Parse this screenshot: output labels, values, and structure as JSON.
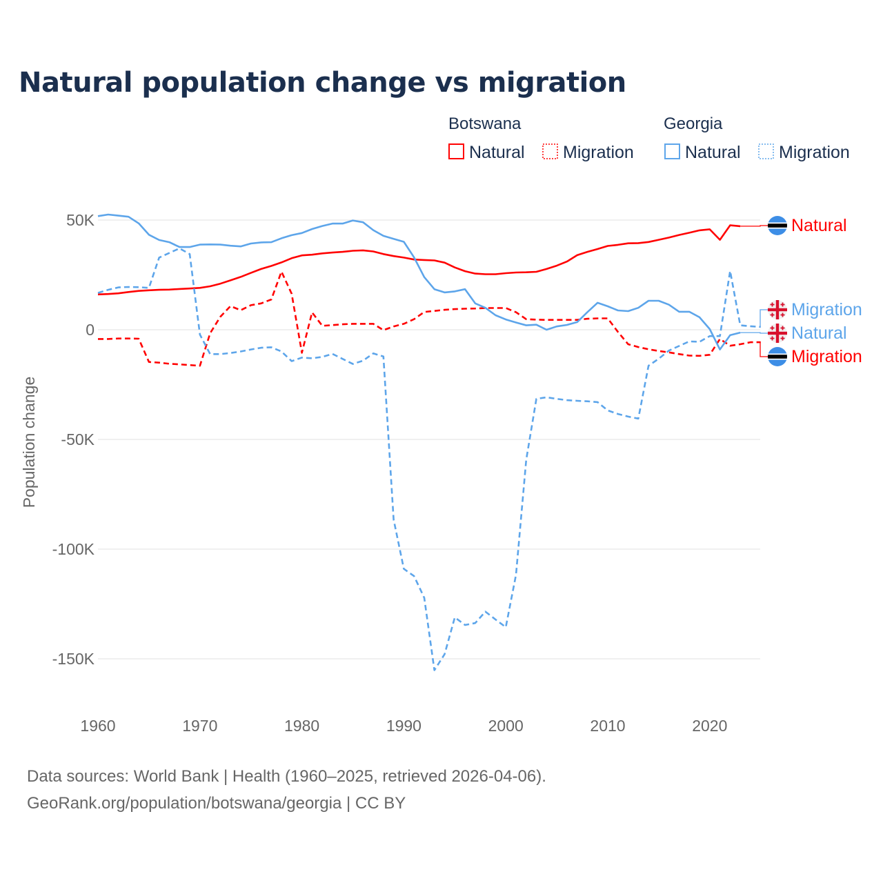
{
  "title": "Natural population change vs migration",
  "legend": {
    "groups": [
      {
        "country": "Botswana",
        "color": "#ff0000",
        "items": [
          "Natural",
          "Migration"
        ]
      },
      {
        "country": "Georgia",
        "color": "#5da5ea",
        "items": [
          "Natural",
          "Migration"
        ]
      }
    ]
  },
  "source": {
    "line1": "Data sources: World Bank | Health (1960–2025, retrieved 2026-04-06).",
    "line2": "GeoRank.org/population/botswana/georgia | CC BY"
  },
  "chart_data": {
    "type": "line",
    "title": "Natural population change vs migration",
    "xlabel": "",
    "ylabel": "Population change",
    "value_scale": 1000,
    "xlim": [
      1960,
      2025
    ],
    "ylim": [
      -165,
      58
    ],
    "x_ticks": [
      1960,
      1970,
      1980,
      1990,
      2000,
      2010,
      2020
    ],
    "x_tick_labels": [
      "1960",
      "1970",
      "1980",
      "1990",
      "2000",
      "2010",
      "2020"
    ],
    "y_ticks": [
      50,
      0,
      -50,
      -100,
      -150
    ],
    "y_tick_labels": [
      "50K",
      "0",
      "-50K",
      "-100K",
      "-150K"
    ],
    "grid": true,
    "legend_position": "top-right",
    "series": [
      {
        "name": "Botswana Natural",
        "end_label": "Natural",
        "flag": "botswana-flag",
        "color": "#ff0000",
        "dash": "solid",
        "start_year": 1960,
        "values": [
          16.1,
          16.3,
          16.6,
          17.2,
          17.7,
          18,
          18.2,
          18.3,
          18.6,
          18.8,
          19.1,
          19.8,
          21,
          22.5,
          24.1,
          25.9,
          27.7,
          29.1,
          30.7,
          32.6,
          33.9,
          34.2,
          34.8,
          35.2,
          35.5,
          36,
          36.2,
          35.7,
          34.5,
          33.6,
          32.9,
          32,
          31.8,
          31.6,
          30.6,
          28.4,
          26.7,
          25.6,
          25.3,
          25.3,
          25.8,
          26.1,
          26.2,
          26.4,
          27.7,
          29.2,
          31.1,
          34,
          35.5,
          36.8,
          38.2,
          38.7,
          39.4,
          39.5,
          40,
          41,
          42,
          43.2,
          44.2,
          45.3,
          45.8,
          41,
          47.6,
          47.2
        ]
      },
      {
        "name": "Botswana Migration",
        "end_label": "Migration",
        "flag": "botswana-flag",
        "color": "#ff0000",
        "dash": "dashed",
        "start_year": 1960,
        "values": [
          -4.2,
          -4.2,
          -4,
          -4,
          -4.1,
          -14.7,
          -15,
          -15.5,
          -15.8,
          -16.1,
          -16.4,
          -1.6,
          5.9,
          10.8,
          8.9,
          11.2,
          12,
          13.8,
          26.5,
          16.4,
          -10.5,
          7.9,
          1.8,
          2.1,
          2.5,
          2.7,
          2.7,
          2.7,
          -0.2,
          1.5,
          2.7,
          4.8,
          8.1,
          8.6,
          9.1,
          9.4,
          9.6,
          9.7,
          9.9,
          9.9,
          9.9,
          8,
          4.8,
          4.6,
          4.5,
          4.5,
          4.5,
          4.5,
          5,
          5.2,
          5.2,
          -1,
          -6.6,
          -7.9,
          -8.9,
          -9.7,
          -10.3,
          -11.1,
          -11.8,
          -11.9,
          -11.4,
          -4.2,
          -7.3,
          -6.6,
          -5.7,
          -5.7
        ]
      },
      {
        "name": "Georgia Natural",
        "end_label": "Natural",
        "flag": "georgia-flag",
        "color": "#5da5ea",
        "dash": "solid",
        "start_year": 1960,
        "values": [
          51.8,
          52.5,
          52,
          51.5,
          48.5,
          43.3,
          40.9,
          39.9,
          37.7,
          37.7,
          38.8,
          38.9,
          38.8,
          38.3,
          38,
          39.3,
          39.8,
          39.9,
          41.7,
          43.1,
          44.1,
          45.9,
          47.3,
          48.4,
          48.4,
          49.8,
          49,
          45.4,
          42.8,
          41.4,
          40.1,
          33,
          24,
          18.5,
          17,
          17.5,
          18.5,
          12,
          10,
          6.6,
          4.7,
          3.3,
          2,
          2.3,
          0,
          1.5,
          2.2,
          3.5,
          8,
          12.3,
          10.7,
          8.8,
          8.5,
          10,
          13.2,
          13.2,
          11.4,
          8.2,
          8.2,
          5.7,
          0.3,
          -9,
          -2.5,
          -1.3
        ]
      },
      {
        "name": "Georgia Migration",
        "end_label": "Migration",
        "flag": "georgia-flag",
        "color": "#5da5ea",
        "dash": "dashed",
        "start_year": 1960,
        "values": [
          16.8,
          18.2,
          19.3,
          19.5,
          19.4,
          19.1,
          32.9,
          35,
          37.1,
          34.5,
          -2.2,
          -11.1,
          -11.1,
          -10.6,
          -9.9,
          -9,
          -8.2,
          -8,
          -9.9,
          -14.3,
          -12.7,
          -13,
          -12.4,
          -11,
          -13.3,
          -15.6,
          -14.1,
          -10.8,
          -12.2,
          -86.5,
          -109,
          -112.3,
          -122.2,
          -155.2,
          -147.9,
          -131.1,
          -134.6,
          -133.7,
          -128.5,
          -132.1,
          -135.6,
          -111.7,
          -59.3,
          -31.5,
          -30.8,
          -31.5,
          -32.1,
          -32.4,
          -32.6,
          -33,
          -36.8,
          -38.4,
          -39.6,
          -40.5,
          -16.4,
          -13.2,
          -9.5,
          -7.4,
          -5.3,
          -5.5,
          -2.9,
          -2.9,
          26.8,
          2,
          1.6,
          1.3
        ]
      }
    ]
  }
}
